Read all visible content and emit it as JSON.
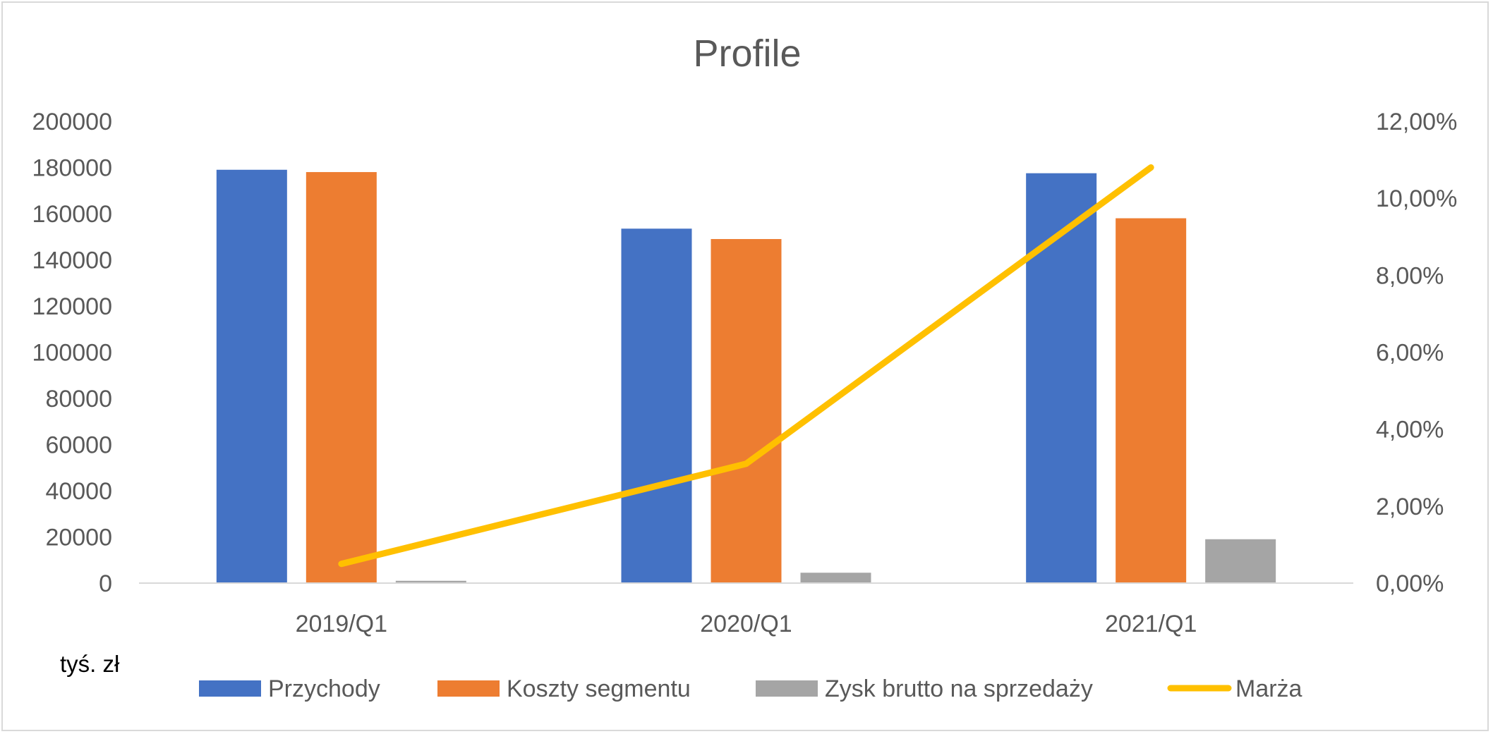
{
  "chart_data": {
    "type": "bar",
    "title": "Profile",
    "unit_label": "tyś. zł",
    "categories": [
      "2019/Q1",
      "2020/Q1",
      "2021/Q1"
    ],
    "series": [
      {
        "name": "Przychody",
        "type": "bar",
        "axis": "left",
        "color": "#4472C4",
        "values": [
          179000,
          153500,
          177500
        ]
      },
      {
        "name": "Koszty segmentu",
        "type": "bar",
        "axis": "left",
        "color": "#ED7D31",
        "values": [
          178000,
          149000,
          158000
        ]
      },
      {
        "name": "Zysk brutto na sprzedaży",
        "type": "bar",
        "axis": "left",
        "color": "#A5A5A5",
        "values": [
          1000,
          4500,
          19000
        ]
      },
      {
        "name": "Marża",
        "type": "line",
        "axis": "right",
        "color": "#FFC000",
        "values": [
          0.005,
          0.031,
          0.108
        ]
      }
    ],
    "y_left": {
      "ylim": [
        0,
        200000
      ],
      "ticks": [
        "0",
        "20000",
        "40000",
        "60000",
        "80000",
        "100000",
        "120000",
        "140000",
        "160000",
        "180000",
        "200000"
      ]
    },
    "y_right": {
      "ylim": [
        0,
        0.12
      ],
      "ticks": [
        "0,00%",
        "2,00%",
        "4,00%",
        "6,00%",
        "8,00%",
        "10,00%",
        "12,00%"
      ]
    },
    "grid": false,
    "legend_position": "bottom"
  }
}
